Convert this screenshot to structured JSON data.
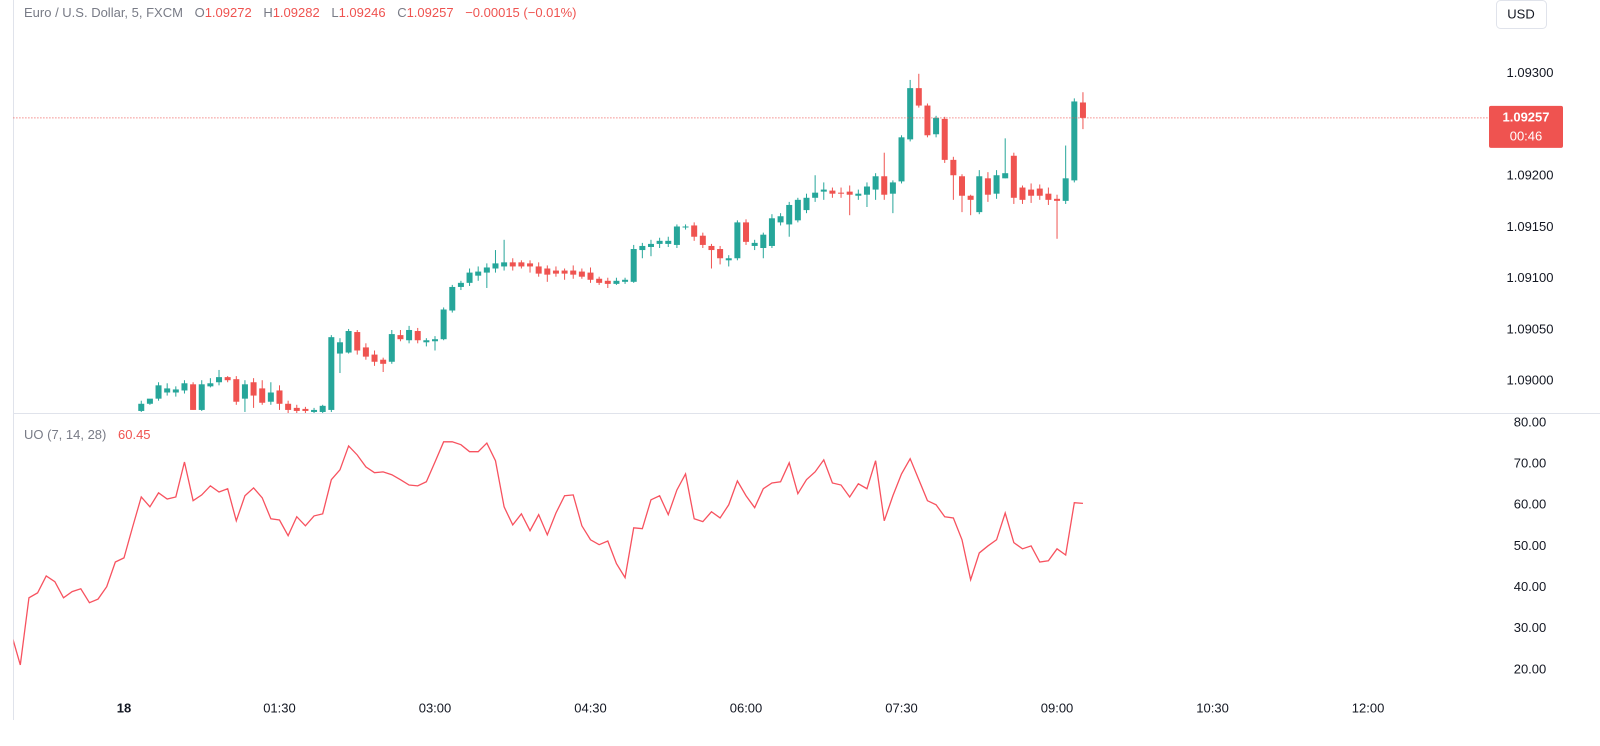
{
  "header": {
    "title": "Euro / U.S. Dollar, 5, FXCM",
    "ohlc_labels": [
      "O",
      "H",
      "L",
      "C"
    ],
    "change": "−0.00015 (−0.01%)",
    "currency": "USD",
    "countdown": "00:46"
  },
  "chart_data": [
    {
      "type": "candlestick",
      "x": [
        10,
        15,
        20,
        25,
        30,
        35,
        40,
        45,
        50,
        55,
        60,
        65,
        70,
        75,
        80,
        85,
        90,
        95,
        100,
        105,
        110,
        115,
        120,
        125,
        130,
        135,
        140,
        145,
        150,
        155,
        160,
        165,
        170,
        175,
        180,
        185,
        190,
        195,
        200,
        205,
        210,
        215,
        220,
        225,
        230,
        235,
        240,
        245,
        250,
        255,
        260,
        265,
        270,
        275,
        280,
        285,
        290,
        295,
        300,
        305,
        310,
        315,
        320,
        325,
        330,
        335,
        340,
        345,
        350,
        355,
        360,
        365,
        370,
        375,
        380,
        385,
        390,
        395,
        400,
        405,
        410,
        415,
        420,
        425,
        430,
        435,
        440,
        445,
        450,
        455,
        460,
        465,
        470,
        475,
        480,
        485,
        490,
        495,
        500,
        505,
        510,
        515,
        520,
        525,
        530,
        535,
        540,
        545,
        550,
        555
      ],
      "open": [
        1.08971,
        1.08978,
        1.08983,
        1.08989,
        1.08989,
        1.08991,
        1.08997,
        1.08972,
        1.08995,
        1.08999,
        1.09004,
        1.09002,
        1.08983,
        1.08999,
        1.08993,
        1.0898,
        1.08991,
        1.08978,
        1.08974,
        1.08973,
        1.0897,
        1.0897,
        1.08972,
        1.09027,
        1.09028,
        1.09048,
        1.09033,
        1.09026,
        1.09021,
        1.09019,
        1.09045,
        1.0904,
        1.09049,
        1.09038,
        1.09039,
        1.09041,
        1.09069,
        1.09092,
        1.09096,
        1.09103,
        1.09106,
        1.0911,
        1.09112,
        1.09116,
        1.09116,
        1.09115,
        1.09112,
        1.0911,
        1.09108,
        1.09108,
        1.09108,
        1.09107,
        1.09106,
        1.091,
        1.09098,
        1.09095,
        1.09097,
        1.09097,
        1.09128,
        1.09131,
        1.09134,
        1.09134,
        1.09133,
        1.0915,
        1.09152,
        1.09142,
        1.09132,
        1.09129,
        1.09118,
        1.0912,
        1.09155,
        1.09132,
        1.0913,
        1.09132,
        1.09155,
        1.09153,
        1.09157,
        1.09167,
        1.09179,
        1.09185,
        1.09186,
        1.09184,
        1.09185,
        1.09181,
        1.09182,
        1.09187,
        1.092,
        1.09183,
        1.09195,
        1.09236,
        1.09286,
        1.09269,
        1.09241,
        1.09256,
        1.09216,
        1.092,
        1.09181,
        1.09165,
        1.09198,
        1.09183,
        1.09198,
        1.0922,
        1.09189,
        1.09187,
        1.09188,
        1.09183,
        1.09178,
        1.09176,
        1.09196,
        1.09272
      ],
      "high": [
        1.08981,
        1.08981,
        1.08999,
        1.08998,
        1.08995,
        1.09001,
        1.08999,
        1.09001,
        1.09003,
        1.09011,
        1.09005,
        1.09005,
        1.09001,
        1.09003,
        1.09001,
        1.08999,
        1.08996,
        1.08981,
        1.08977,
        1.08975,
        1.08974,
        1.08977,
        1.09045,
        1.09042,
        1.09051,
        1.0905,
        1.09037,
        1.0903,
        1.09023,
        1.0905,
        1.0905,
        1.09054,
        1.09052,
        1.09042,
        1.09044,
        1.09072,
        1.09094,
        1.09098,
        1.0911,
        1.09112,
        1.09115,
        1.09128,
        1.09138,
        1.0912,
        1.09118,
        1.09118,
        1.09116,
        1.09113,
        1.09112,
        1.0911,
        1.09113,
        1.0911,
        1.09111,
        1.09102,
        1.09101,
        1.09101,
        1.09101,
        1.09133,
        1.09135,
        1.09138,
        1.0914,
        1.09141,
        1.09153,
        1.09153,
        1.09155,
        1.09145,
        1.09134,
        1.09132,
        1.09123,
        1.09157,
        1.09158,
        1.09138,
        1.09145,
        1.09163,
        1.09164,
        1.09175,
        1.09179,
        1.09183,
        1.09201,
        1.09194,
        1.09189,
        1.09189,
        1.09191,
        1.09187,
        1.09194,
        1.09203,
        1.09223,
        1.09196,
        1.0924,
        1.09294,
        1.093,
        1.09271,
        1.09259,
        1.09258,
        1.09219,
        1.09202,
        1.09182,
        1.09206,
        1.09204,
        1.09206,
        1.09237,
        1.09223,
        1.09191,
        1.09193,
        1.09192,
        1.09189,
        1.09182,
        1.0923,
        1.09276,
        1.09282
      ],
      "low": [
        1.0897,
        1.08977,
        1.08981,
        1.08986,
        1.08985,
        1.08988,
        1.08972,
        1.08971,
        1.08994,
        1.08996,
        1.08999,
        1.08977,
        1.0897,
        1.08974,
        1.08977,
        1.08977,
        1.08972,
        1.08968,
        1.08968,
        1.08968,
        1.08968,
        1.08968,
        1.0897,
        1.09008,
        1.09027,
        1.09026,
        1.09021,
        1.09015,
        1.09009,
        1.09017,
        1.09039,
        1.09037,
        1.09037,
        1.09034,
        1.0903,
        1.0904,
        1.09067,
        1.09089,
        1.09093,
        1.09098,
        1.09091,
        1.09106,
        1.09108,
        1.09108,
        1.0911,
        1.09106,
        1.09102,
        1.09097,
        1.09102,
        1.09099,
        1.091,
        1.091,
        1.09096,
        1.09094,
        1.09091,
        1.09094,
        1.09095,
        1.09096,
        1.0912,
        1.09122,
        1.0913,
        1.09131,
        1.0913,
        1.09148,
        1.09137,
        1.0913,
        1.0911,
        1.09114,
        1.09112,
        1.09118,
        1.09133,
        1.09128,
        1.0912,
        1.0913,
        1.09152,
        1.09141,
        1.09155,
        1.09164,
        1.09175,
        1.09177,
        1.09179,
        1.09179,
        1.09162,
        1.09177,
        1.0917,
        1.09177,
        1.09177,
        1.09164,
        1.09193,
        1.09234,
        1.09267,
        1.09238,
        1.09238,
        1.09213,
        1.09177,
        1.09165,
        1.09162,
        1.09163,
        1.09175,
        1.09178,
        1.09198,
        1.09173,
        1.09173,
        1.09174,
        1.09177,
        1.09172,
        1.09139,
        1.09173,
        1.09194,
        1.09246
      ],
      "close": [
        1.08978,
        1.08983,
        1.08996,
        1.08993,
        1.08992,
        1.08998,
        1.08972,
        1.08997,
        1.08998,
        1.09004,
        1.09001,
        1.0898,
        1.08997,
        1.08986,
        1.08979,
        1.08989,
        1.08978,
        1.08972,
        1.08971,
        1.08971,
        1.08972,
        1.08976,
        1.09043,
        1.09038,
        1.09049,
        1.0903,
        1.09024,
        1.09019,
        1.09017,
        1.09046,
        1.09041,
        1.0905,
        1.0904,
        1.0904,
        1.09041,
        1.0907,
        1.09092,
        1.09096,
        1.09106,
        1.09107,
        1.09111,
        1.09115,
        1.09116,
        1.09112,
        1.09112,
        1.09112,
        1.09105,
        1.09104,
        1.09105,
        1.09105,
        1.09104,
        1.09102,
        1.09099,
        1.09096,
        1.09095,
        1.09098,
        1.09099,
        1.09129,
        1.09132,
        1.09134,
        1.09137,
        1.09137,
        1.09151,
        1.09151,
        1.09141,
        1.09133,
        1.09128,
        1.0912,
        1.0912,
        1.09155,
        1.09136,
        1.09135,
        1.09143,
        1.09159,
        1.09161,
        1.09172,
        1.09177,
        1.09179,
        1.09184,
        1.09187,
        1.09183,
        1.09183,
        1.09182,
        1.09183,
        1.0919,
        1.092,
        1.09182,
        1.09194,
        1.09238,
        1.09286,
        1.09269,
        1.0924,
        1.09257,
        1.09216,
        1.09201,
        1.09181,
        1.09177,
        1.092,
        1.09182,
        1.09201,
        1.09203,
        1.09179,
        1.09177,
        1.09181,
        1.09181,
        1.09177,
        1.09176,
        1.09198,
        1.09273,
        1.09257
      ],
      "up_color": "#26a69a",
      "down_color": "#ef5350",
      "xlim": [
        -64,
        790
      ],
      "ylim": [
        1.08969,
        1.09372
      ],
      "yticks": [
        {
          "value": 1.09,
          "label": "1.09000"
        },
        {
          "value": 1.0905,
          "label": "1.09050"
        },
        {
          "value": 1.091,
          "label": "1.09100"
        },
        {
          "value": 1.0915,
          "label": "1.09150"
        },
        {
          "value": 1.092,
          "label": "1.09200"
        },
        {
          "value": 1.0925,
          "label": "1.09250"
        },
        {
          "value": 1.093,
          "label": "1.09300"
        }
      ]
    },
    {
      "type": "line",
      "title": "UO (7, 14, 28)",
      "x": [
        -65,
        -60,
        -55,
        -50,
        -45,
        -40,
        -35,
        -30,
        -25,
        -20,
        -15,
        -10,
        -5,
        0,
        5,
        10,
        15,
        20,
        25,
        30,
        35,
        40,
        45,
        50,
        55,
        60,
        65,
        70,
        75,
        80,
        85,
        90,
        95,
        100,
        105,
        110,
        115,
        120,
        125,
        130,
        135,
        140,
        145,
        150,
        155,
        160,
        165,
        170,
        175,
        180,
        185,
        190,
        195,
        200,
        205,
        210,
        215,
        220,
        225,
        230,
        235,
        240,
        245,
        250,
        255,
        260,
        265,
        270,
        275,
        280,
        285,
        290,
        295,
        300,
        305,
        310,
        315,
        320,
        325,
        330,
        335,
        340,
        345,
        350,
        355,
        360,
        365,
        370,
        375,
        380,
        385,
        390,
        395,
        400,
        405,
        410,
        415,
        420,
        425,
        430,
        435,
        440,
        445,
        450,
        455,
        460,
        465,
        470,
        475,
        480,
        485,
        490,
        495,
        500,
        505,
        510,
        515,
        520,
        525,
        530,
        535,
        540,
        545,
        550,
        555
      ],
      "values": [
        28.5,
        21.2,
        37.5,
        38.7,
        42.8,
        41.4,
        37.5,
        39.0,
        39.7,
        36.3,
        37.2,
        40.2,
        46.2,
        47.2,
        54.7,
        62.0,
        59.6,
        63.0,
        61.5,
        62.0,
        70.5,
        61.1,
        62.5,
        64.7,
        63.2,
        64.0,
        56.2,
        62.3,
        64.2,
        61.8,
        56.7,
        56.4,
        52.6,
        57.2,
        55.0,
        57.4,
        57.9,
        66.2,
        68.6,
        74.4,
        72.2,
        69.3,
        67.9,
        68.1,
        67.4,
        66.2,
        64.9,
        64.7,
        65.7,
        70.5,
        75.4,
        75.4,
        74.7,
        73.0,
        73.0,
        75.1,
        70.8,
        59.6,
        55.2,
        57.9,
        53.8,
        57.7,
        52.8,
        58.1,
        62.3,
        62.5,
        55.0,
        51.6,
        50.4,
        51.3,
        45.8,
        42.4,
        54.5,
        54.3,
        61.3,
        62.3,
        57.7,
        63.7,
        67.6,
        56.7,
        56.0,
        58.4,
        56.9,
        60.1,
        65.9,
        62.3,
        59.4,
        64.0,
        65.4,
        65.7,
        70.3,
        62.8,
        66.2,
        68.1,
        71.0,
        65.4,
        64.9,
        62.0,
        65.2,
        64.0,
        70.8,
        56.2,
        62.3,
        67.6,
        71.3,
        66.2,
        61.1,
        60.1,
        57.2,
        56.9,
        51.6,
        41.9,
        48.4,
        50.1,
        51.6,
        58.1,
        50.9,
        49.4,
        50.1,
        46.2,
        46.5,
        49.4,
        47.9,
        60.6,
        60.45
      ],
      "color": "#f7525f",
      "xlim": [
        -64,
        790
      ],
      "ylim": [
        15.1,
        82.4
      ],
      "yticks": [
        {
          "value": 20,
          "label": "20.00"
        },
        {
          "value": 30,
          "label": "30.00"
        },
        {
          "value": 40,
          "label": "40.00"
        },
        {
          "value": 50,
          "label": "50.00"
        },
        {
          "value": 60,
          "label": "60.00"
        },
        {
          "value": 70,
          "label": "70.00"
        },
        {
          "value": 80,
          "label": "80.00"
        }
      ],
      "xticks": [
        {
          "value": 0,
          "label": "18"
        },
        {
          "value": 90,
          "label": "01:30"
        },
        {
          "value": 180,
          "label": "03:00"
        },
        {
          "value": 270,
          "label": "04:30"
        },
        {
          "value": 360,
          "label": "06:00"
        },
        {
          "value": 450,
          "label": "07:30"
        },
        {
          "value": 540,
          "label": "09:00"
        },
        {
          "value": 630,
          "label": "10:30"
        },
        {
          "value": 720,
          "label": "12:00"
        }
      ]
    }
  ]
}
